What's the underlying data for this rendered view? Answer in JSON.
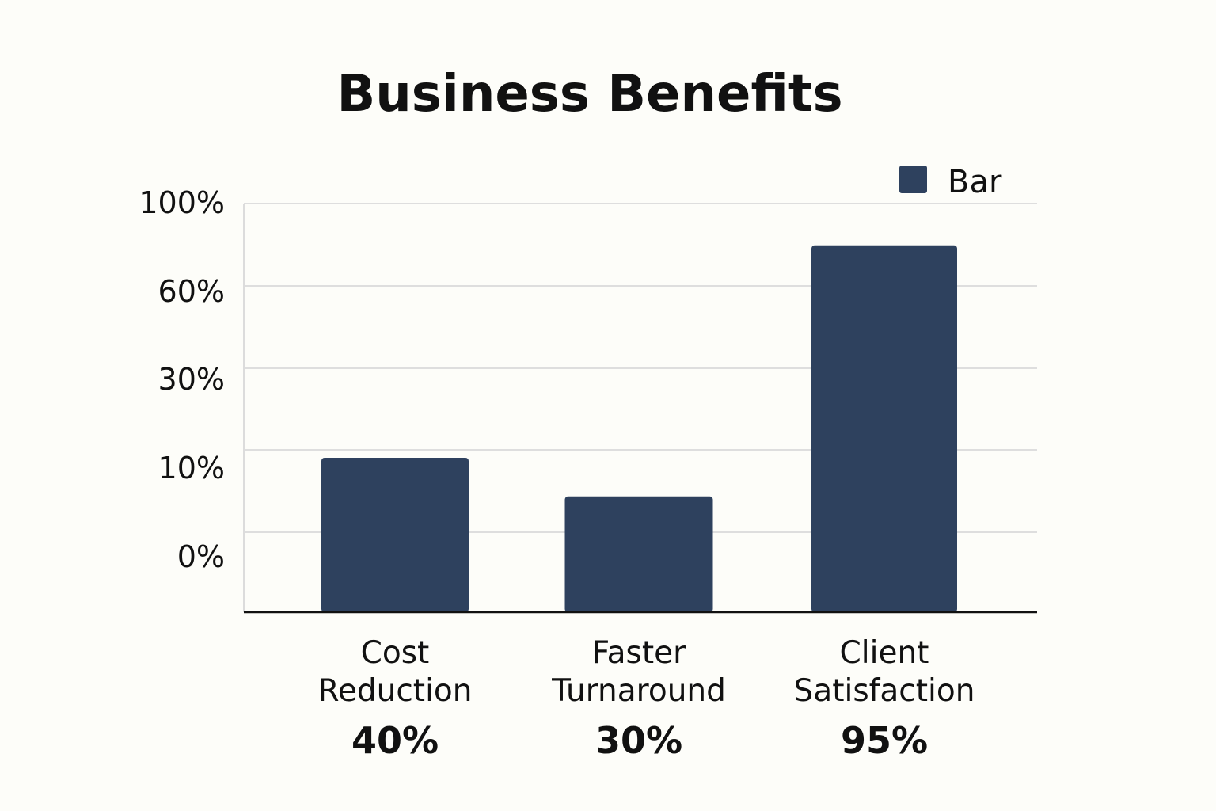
{
  "chart_data": {
    "type": "bar",
    "title": "Business Benefits",
    "xlabel": "",
    "ylabel": "",
    "y_tick_labels": [
      "100%",
      "60%",
      "30%",
      "10%",
      "0%"
    ],
    "categories": [
      [
        "Cost",
        "Reduction"
      ],
      [
        "Faster",
        "Turnaround"
      ],
      [
        "Client",
        "Satisfaction"
      ]
    ],
    "value_labels": [
      "40%",
      "30%",
      "95%"
    ],
    "values": [
      40,
      30,
      95
    ],
    "series": [
      {
        "name": "Bar",
        "values": [
          40,
          30,
          95
        ]
      }
    ],
    "ylim": [
      0,
      100
    ],
    "grid": true,
    "legend_position": "top-right",
    "colors": {
      "bar": "#2e415e",
      "grid": "#dedede",
      "axis": "#111111",
      "background": "#fdfdf9"
    }
  }
}
